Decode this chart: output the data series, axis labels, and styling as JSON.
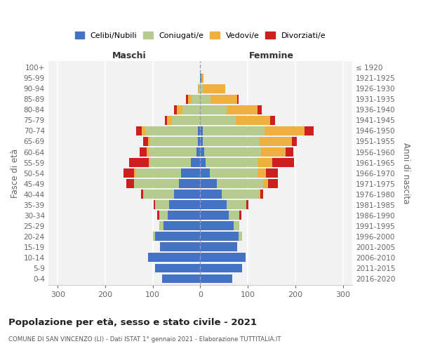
{
  "age_groups": [
    "100+",
    "95-99",
    "90-94",
    "85-89",
    "80-84",
    "75-79",
    "70-74",
    "65-69",
    "60-64",
    "55-59",
    "50-54",
    "45-49",
    "40-44",
    "35-39",
    "30-34",
    "25-29",
    "20-24",
    "15-19",
    "10-14",
    "5-9",
    "0-4"
  ],
  "birth_years": [
    "≤ 1920",
    "1921-1925",
    "1926-1930",
    "1931-1935",
    "1936-1940",
    "1941-1945",
    "1946-1950",
    "1951-1955",
    "1956-1960",
    "1961-1965",
    "1966-1970",
    "1971-1975",
    "1976-1980",
    "1981-1985",
    "1986-1990",
    "1991-1995",
    "1996-2000",
    "2001-2005",
    "2006-2010",
    "2011-2015",
    "2016-2020"
  ],
  "males": {
    "celibi": [
      0,
      0,
      0,
      0,
      0,
      0,
      5,
      5,
      8,
      20,
      40,
      45,
      55,
      65,
      68,
      78,
      95,
      85,
      110,
      95,
      80
    ],
    "coniugati": [
      0,
      0,
      3,
      18,
      38,
      60,
      110,
      100,
      100,
      85,
      95,
      95,
      65,
      30,
      18,
      8,
      5,
      0,
      0,
      0,
      0
    ],
    "vedovi": [
      0,
      0,
      2,
      8,
      12,
      10,
      8,
      5,
      5,
      4,
      4,
      0,
      0,
      0,
      0,
      0,
      0,
      0,
      0,
      0,
      0
    ],
    "divorziati": [
      0,
      0,
      0,
      4,
      5,
      5,
      12,
      10,
      15,
      40,
      22,
      15,
      5,
      3,
      5,
      0,
      0,
      0,
      0,
      0,
      0
    ]
  },
  "females": {
    "nubili": [
      0,
      2,
      0,
      0,
      0,
      0,
      5,
      5,
      8,
      12,
      20,
      35,
      45,
      55,
      60,
      70,
      80,
      78,
      95,
      88,
      68
    ],
    "coniugate": [
      0,
      0,
      5,
      22,
      55,
      75,
      130,
      120,
      120,
      108,
      100,
      98,
      78,
      42,
      22,
      12,
      8,
      0,
      0,
      0,
      0
    ],
    "vedove": [
      0,
      5,
      48,
      55,
      65,
      72,
      85,
      68,
      52,
      32,
      18,
      10,
      4,
      0,
      0,
      0,
      0,
      0,
      0,
      0,
      0
    ],
    "divorziate": [
      0,
      0,
      0,
      4,
      10,
      10,
      18,
      10,
      16,
      45,
      25,
      20,
      5,
      5,
      4,
      0,
      0,
      0,
      0,
      0,
      0
    ]
  },
  "colors": {
    "celibi_nubili": "#4472c4",
    "coniugati": "#b5cc8e",
    "vedovi": "#f0b040",
    "divorziati": "#cc2020"
  },
  "title": "Popolazione per età, sesso e stato civile - 2021",
  "subtitle": "COMUNE DI SAN VINCENZO (LI) - Dati ISTAT 1° gennaio 2021 - Elaborazione TUTTITALIA.IT",
  "xlabel_left": "Maschi",
  "xlabel_right": "Femmine",
  "ylabel_left": "Fasce di età",
  "ylabel_right": "Anni di nascita",
  "xlim": 320,
  "bg_color": "#f2f2f2",
  "bar_height": 0.85
}
